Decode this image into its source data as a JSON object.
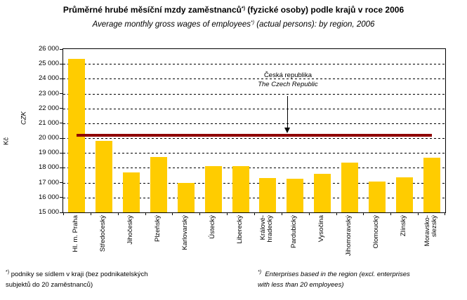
{
  "header": {
    "title_pre": "Průměrné hrubé měsíční mzdy zaměstnanců",
    "title_sup": "*)",
    "title_post": " (fyzické osoby) podle krajů v roce 2006",
    "subtitle_pre": "Average monthly gross wages of employees",
    "subtitle_sup": "*)",
    "subtitle_post": " (actual persons): by region, 2006"
  },
  "y_axis": {
    "unit_label_cz": "Kč",
    "unit_label_en": "CZK",
    "tick_labels": [
      "26 000",
      "25 000",
      "24 000",
      "23 000",
      "22 000",
      "21 000",
      "20 000",
      "19 000",
      "18 000",
      "17 000",
      "16 000",
      "15 000"
    ]
  },
  "chart_data": {
    "type": "bar",
    "title": "Průměrné hrubé měsíční mzdy zaměstnanců*) (fyzické osoby) podle krajů v roce 2006",
    "subtitle": "Average monthly gross wages of employees*) (actual persons): by region, 2006",
    "xlabel": "",
    "ylabel": "Kč (CZK)",
    "ylim": [
      15000,
      26000
    ],
    "ytick_step": 1000,
    "grid": "horizontal-dashed",
    "legend_position": "none",
    "bar_color": "#FFCC00",
    "categories": [
      "Hl. m. Praha",
      "Středočeský",
      "Jihočeský",
      "Plzeňský",
      "Karlovarský",
      "Ústecký",
      "Liberecký",
      "Královéhradecký",
      "Pardubický",
      "Vysočina",
      "Jihomoravský",
      "Olomoucký",
      "Zlínský",
      "Moravskoslezský"
    ],
    "category_display_lines": [
      [
        "Hl. m. Praha"
      ],
      [
        "Středočeský"
      ],
      [
        "Jihočeský"
      ],
      [
        "Plzeňský"
      ],
      [
        "Karlovarský"
      ],
      [
        "Ústecký"
      ],
      [
        "Liberecký"
      ],
      [
        "Králové-",
        "hradecký"
      ],
      [
        "Pardubický"
      ],
      [
        "Vysočina"
      ],
      [
        "Jihomoravský"
      ],
      [
        "Olomoucký"
      ],
      [
        "Zlínský"
      ],
      [
        "Moravsko-",
        "slezský"
      ]
    ],
    "values": [
      25350,
      19800,
      17700,
      18750,
      17000,
      18100,
      18100,
      17300,
      17250,
      17600,
      18350,
      17100,
      17350,
      18700
    ],
    "reference_line": {
      "label_cz": "Česká republika",
      "label_en": "The Czech Republic",
      "value": 20200,
      "color": "#900000"
    }
  },
  "footnotes": {
    "cz": {
      "sup": "*)",
      "line1": "podniky se sídlem v kraji (bez podnikatelských",
      "line2": "subjektů do 20 zaměstnanců)"
    },
    "en": {
      "sup": "*)",
      "line1": "Enterprises based in the region (excl. enterprises",
      "line2": "with less than 20 employees)"
    }
  }
}
